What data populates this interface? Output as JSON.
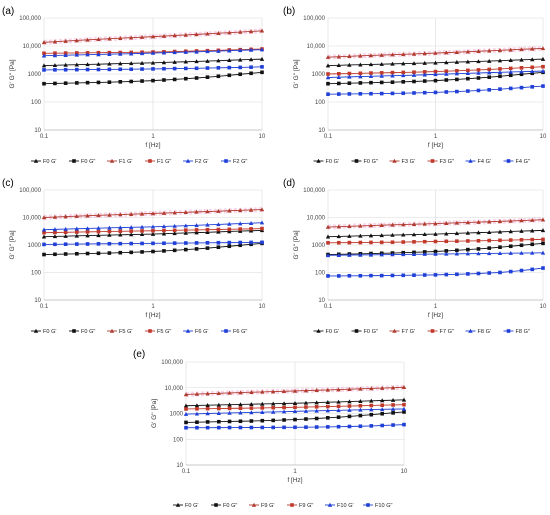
{
  "chart_data": [
    {
      "type": "line",
      "panel_label": "(a)",
      "xlabel": "f [Hz]",
      "ylabel": "G' G'' [Pa]",
      "xscale": "log",
      "yscale": "log",
      "xlim": [
        0.1,
        10
      ],
      "ylim": [
        10,
        100000
      ],
      "x_ticks": [
        "0.1",
        "1",
        "10"
      ],
      "y_ticks": [
        "10",
        "100",
        "1000",
        "10,000",
        "100,000"
      ],
      "grid": true,
      "legend_position": "bottom",
      "x": [
        0.1,
        0.126,
        0.158,
        0.2,
        0.251,
        0.316,
        0.398,
        0.501,
        0.631,
        0.794,
        1.0,
        1.26,
        1.58,
        2.0,
        2.51,
        3.16,
        3.98,
        5.01,
        6.31,
        7.94,
        10
      ],
      "series": [
        {
          "name": "F0 G'",
          "color": "#111111",
          "marker": "triangle",
          "values": [
            2000,
            2050,
            2100,
            2150,
            2200,
            2250,
            2300,
            2350,
            2400,
            2450,
            2500,
            2580,
            2660,
            2740,
            2820,
            2900,
            3000,
            3100,
            3200,
            3300,
            3400
          ]
        },
        {
          "name": "F0 G\"",
          "color": "#111111",
          "marker": "square",
          "values": [
            450,
            460,
            470,
            480,
            490,
            500,
            510,
            525,
            540,
            560,
            580,
            610,
            640,
            680,
            720,
            770,
            830,
            900,
            980,
            1060,
            1150
          ]
        },
        {
          "name": "F1 G'",
          "color": "#b03a2e",
          "marker": "triangle",
          "values": [
            13500,
            14200,
            15000,
            15800,
            16600,
            17400,
            18200,
            19000,
            19800,
            20700,
            21600,
            22600,
            23700,
            24800,
            26000,
            27300,
            28600,
            30000,
            31500,
            33000,
            35000
          ]
        },
        {
          "name": "F1 G\"",
          "color": "#c0392b",
          "marker": "square",
          "values": [
            5500,
            5550,
            5600,
            5650,
            5700,
            5750,
            5800,
            5850,
            5900,
            6000,
            6100,
            6200,
            6350,
            6500,
            6650,
            6800,
            7000,
            7200,
            7400,
            7600,
            7800
          ]
        },
        {
          "name": "F2 G'",
          "color": "#1f3fd6",
          "marker": "triangle",
          "values": [
            4500,
            4600,
            4700,
            4800,
            4900,
            5000,
            5100,
            5200,
            5300,
            5450,
            5600,
            5750,
            5900,
            6050,
            6200,
            6400,
            6600,
            6800,
            7000,
            7200,
            7400
          ]
        },
        {
          "name": "F2 G\"",
          "color": "#1f3fd6",
          "marker": "square",
          "values": [
            1400,
            1410,
            1420,
            1430,
            1440,
            1450,
            1460,
            1470,
            1480,
            1500,
            1520,
            1540,
            1560,
            1580,
            1600,
            1630,
            1660,
            1690,
            1720,
            1750,
            1800
          ]
        }
      ]
    },
    {
      "type": "line",
      "panel_label": "(b)",
      "xlabel": "f [Hz]",
      "ylabel": "G' G'' [Pa]",
      "xscale": "log",
      "yscale": "log",
      "xlim": [
        0.1,
        10
      ],
      "ylim": [
        10,
        100000
      ],
      "x_ticks": [
        "0.1",
        "1",
        "10"
      ],
      "y_ticks": [
        "10",
        "100",
        "1000",
        "10,000",
        "100,000"
      ],
      "grid": true,
      "legend_position": "bottom",
      "x": [
        0.1,
        0.126,
        0.158,
        0.2,
        0.251,
        0.316,
        0.398,
        0.501,
        0.631,
        0.794,
        1.0,
        1.26,
        1.58,
        2.0,
        2.51,
        3.16,
        3.98,
        5.01,
        6.31,
        7.94,
        10
      ],
      "series": [
        {
          "name": "F0 G'",
          "color": "#111111",
          "marker": "triangle",
          "values": [
            2000,
            2050,
            2100,
            2150,
            2200,
            2250,
            2300,
            2350,
            2400,
            2450,
            2500,
            2580,
            2660,
            2740,
            2820,
            2900,
            3000,
            3100,
            3200,
            3300,
            3400
          ]
        },
        {
          "name": "F0 G\"",
          "color": "#111111",
          "marker": "square",
          "values": [
            450,
            460,
            470,
            480,
            490,
            500,
            510,
            525,
            540,
            560,
            580,
            610,
            640,
            680,
            720,
            770,
            830,
            900,
            980,
            1060,
            1150
          ]
        },
        {
          "name": "F3 G'",
          "color": "#b03a2e",
          "marker": "triangle",
          "values": [
            4000,
            4150,
            4300,
            4450,
            4600,
            4750,
            4900,
            5050,
            5200,
            5400,
            5600,
            5800,
            6000,
            6250,
            6500,
            6750,
            7000,
            7300,
            7600,
            7900,
            8200
          ]
        },
        {
          "name": "F3 G\"",
          "color": "#c0392b",
          "marker": "square",
          "values": [
            1000,
            1020,
            1040,
            1060,
            1080,
            1100,
            1120,
            1140,
            1160,
            1190,
            1220,
            1260,
            1300,
            1350,
            1400,
            1460,
            1520,
            1590,
            1660,
            1740,
            1820
          ]
        },
        {
          "name": "F4 G'",
          "color": "#1f3fd6",
          "marker": "triangle",
          "values": [
            750,
            770,
            790,
            810,
            830,
            850,
            870,
            890,
            910,
            940,
            970,
            1000,
            1030,
            1060,
            1090,
            1120,
            1150,
            1180,
            1210,
            1240,
            1270
          ]
        },
        {
          "name": "F4 G\"",
          "color": "#1f3fd6",
          "marker": "square",
          "values": [
            190,
            192,
            194,
            196,
            198,
            200,
            203,
            206,
            210,
            215,
            220,
            228,
            236,
            246,
            258,
            272,
            288,
            306,
            326,
            348,
            370
          ]
        }
      ]
    },
    {
      "type": "line",
      "panel_label": "(c)",
      "xlabel": "f [Hz]",
      "ylabel": "G' G'' [Pa]",
      "xscale": "log",
      "yscale": "log",
      "xlim": [
        0.1,
        10
      ],
      "ylim": [
        10,
        100000
      ],
      "x_ticks": [
        "0.1",
        "1",
        "10"
      ],
      "y_ticks": [
        "10",
        "100",
        "1000",
        "10,000",
        "100,000"
      ],
      "grid": true,
      "legend_position": "bottom",
      "x": [
        0.1,
        0.126,
        0.158,
        0.2,
        0.251,
        0.316,
        0.398,
        0.501,
        0.631,
        0.794,
        1.0,
        1.26,
        1.58,
        2.0,
        2.51,
        3.16,
        3.98,
        5.01,
        6.31,
        7.94,
        10
      ],
      "series": [
        {
          "name": "F0 G'",
          "color": "#111111",
          "marker": "triangle",
          "values": [
            2000,
            2050,
            2100,
            2150,
            2200,
            2250,
            2300,
            2350,
            2400,
            2450,
            2500,
            2580,
            2660,
            2740,
            2820,
            2900,
            3000,
            3100,
            3200,
            3300,
            3400
          ]
        },
        {
          "name": "F0 G\"",
          "color": "#111111",
          "marker": "square",
          "values": [
            450,
            460,
            470,
            480,
            490,
            500,
            510,
            525,
            540,
            560,
            580,
            610,
            640,
            680,
            720,
            770,
            830,
            900,
            980,
            1060,
            1150
          ]
        },
        {
          "name": "F5 G'",
          "color": "#b03a2e",
          "marker": "triangle",
          "values": [
            10000,
            10400,
            10800,
            11200,
            11600,
            12000,
            12400,
            12800,
            13200,
            13600,
            14000,
            14500,
            15000,
            15500,
            16000,
            16500,
            17000,
            17600,
            18200,
            18800,
            19500
          ]
        },
        {
          "name": "F5 G\"",
          "color": "#c0392b",
          "marker": "square",
          "values": [
            2800,
            2850,
            2900,
            2950,
            3000,
            3050,
            3100,
            3150,
            3200,
            3250,
            3300,
            3360,
            3420,
            3480,
            3540,
            3600,
            3660,
            3720,
            3790,
            3860,
            3950
          ]
        },
        {
          "name": "F6 G'",
          "color": "#1f3fd6",
          "marker": "triangle",
          "values": [
            3600,
            3700,
            3800,
            3900,
            4000,
            4100,
            4200,
            4300,
            4400,
            4500,
            4600,
            4750,
            4900,
            5050,
            5200,
            5400,
            5600,
            5800,
            6000,
            6200,
            6500
          ]
        },
        {
          "name": "F6 G\"",
          "color": "#1f3fd6",
          "marker": "square",
          "values": [
            1050,
            1060,
            1070,
            1080,
            1090,
            1100,
            1110,
            1120,
            1130,
            1140,
            1150,
            1160,
            1170,
            1180,
            1190,
            1200,
            1210,
            1220,
            1230,
            1240,
            1250
          ]
        }
      ]
    },
    {
      "type": "line",
      "panel_label": "(d)",
      "xlabel": "f [Hz]",
      "ylabel": "G' G'' [Pa]",
      "xscale": "log",
      "yscale": "log",
      "xlim": [
        0.1,
        10
      ],
      "ylim": [
        10,
        100000
      ],
      "x_ticks": [
        "0.1",
        "1",
        "10"
      ],
      "y_ticks": [
        "10",
        "100",
        "1000",
        "10,000",
        "100,000"
      ],
      "grid": true,
      "legend_position": "bottom",
      "x": [
        0.1,
        0.126,
        0.158,
        0.2,
        0.251,
        0.316,
        0.398,
        0.501,
        0.631,
        0.794,
        1.0,
        1.26,
        1.58,
        2.0,
        2.51,
        3.16,
        3.98,
        5.01,
        6.31,
        7.94,
        10
      ],
      "series": [
        {
          "name": "F0 G'",
          "color": "#111111",
          "marker": "triangle",
          "values": [
            2000,
            2050,
            2100,
            2150,
            2200,
            2250,
            2300,
            2350,
            2400,
            2450,
            2500,
            2580,
            2660,
            2740,
            2820,
            2900,
            3000,
            3100,
            3200,
            3300,
            3400
          ]
        },
        {
          "name": "F0 G\"",
          "color": "#111111",
          "marker": "square",
          "values": [
            450,
            460,
            470,
            480,
            490,
            500,
            510,
            525,
            540,
            560,
            580,
            610,
            640,
            680,
            720,
            770,
            830,
            900,
            980,
            1060,
            1150
          ]
        },
        {
          "name": "F7 G'",
          "color": "#b03a2e",
          "marker": "triangle",
          "values": [
            4500,
            4650,
            4800,
            4950,
            5100,
            5250,
            5400,
            5550,
            5700,
            5850,
            6000,
            6200,
            6400,
            6600,
            6800,
            7000,
            7250,
            7500,
            7750,
            8000,
            8300
          ]
        },
        {
          "name": "F7 G\"",
          "color": "#c0392b",
          "marker": "square",
          "values": [
            1200,
            1210,
            1220,
            1230,
            1240,
            1250,
            1260,
            1280,
            1300,
            1320,
            1340,
            1360,
            1380,
            1400,
            1420,
            1450,
            1480,
            1510,
            1540,
            1570,
            1600
          ]
        },
        {
          "name": "F8 G'",
          "color": "#1f3fd6",
          "marker": "triangle",
          "values": [
            420,
            425,
            430,
            435,
            440,
            445,
            450,
            455,
            460,
            465,
            470,
            475,
            480,
            485,
            490,
            495,
            500,
            505,
            510,
            515,
            520
          ]
        },
        {
          "name": "F8 G\"",
          "color": "#1f3fd6",
          "marker": "square",
          "values": [
            75,
            75,
            76,
            76,
            77,
            77,
            78,
            79,
            80,
            81,
            82,
            84,
            86,
            89,
            92,
            96,
            100,
            108,
            118,
            130,
            145
          ]
        }
      ]
    },
    {
      "type": "line",
      "panel_label": "(e)",
      "xlabel": "f [Hz]",
      "ylabel": "G' G'' [Pa]",
      "xscale": "log",
      "yscale": "log",
      "xlim": [
        0.1,
        10
      ],
      "ylim": [
        10,
        100000
      ],
      "x_ticks": [
        "0.1",
        "1",
        "10"
      ],
      "y_ticks": [
        "10",
        "100",
        "1000",
        "10,000",
        "100,000"
      ],
      "grid": true,
      "legend_position": "bottom",
      "x": [
        0.1,
        0.126,
        0.158,
        0.2,
        0.251,
        0.316,
        0.398,
        0.501,
        0.631,
        0.794,
        1.0,
        1.26,
        1.58,
        2.0,
        2.51,
        3.16,
        3.98,
        5.01,
        6.31,
        7.94,
        10
      ],
      "series": [
        {
          "name": "F0 G'",
          "color": "#111111",
          "marker": "triangle",
          "values": [
            2000,
            2050,
            2100,
            2150,
            2200,
            2250,
            2300,
            2350,
            2400,
            2450,
            2500,
            2580,
            2660,
            2740,
            2820,
            2900,
            3000,
            3100,
            3200,
            3300,
            3400
          ]
        },
        {
          "name": "F0 G\"",
          "color": "#111111",
          "marker": "square",
          "values": [
            450,
            460,
            470,
            480,
            490,
            500,
            510,
            525,
            540,
            560,
            580,
            610,
            640,
            680,
            720,
            770,
            830,
            900,
            980,
            1060,
            1150
          ]
        },
        {
          "name": "F9 G'",
          "color": "#b03a2e",
          "marker": "triangle",
          "values": [
            5500,
            5700,
            5900,
            6100,
            6300,
            6500,
            6700,
            6900,
            7100,
            7300,
            7500,
            7750,
            8000,
            8250,
            8500,
            8800,
            9100,
            9400,
            9700,
            10000,
            10500
          ]
        },
        {
          "name": "F9 G\"",
          "color": "#c0392b",
          "marker": "square",
          "values": [
            1500,
            1520,
            1540,
            1560,
            1580,
            1600,
            1620,
            1650,
            1680,
            1710,
            1740,
            1780,
            1820,
            1860,
            1900,
            1950,
            2000,
            2050,
            2100,
            2150,
            2200
          ]
        },
        {
          "name": "F10 G'",
          "color": "#1f3fd6",
          "marker": "triangle",
          "values": [
            950,
            975,
            1000,
            1025,
            1050,
            1075,
            1100,
            1125,
            1150,
            1180,
            1210,
            1240,
            1270,
            1300,
            1330,
            1360,
            1390,
            1420,
            1450,
            1480,
            1500
          ]
        },
        {
          "name": "F10 G\"",
          "color": "#1f3fd6",
          "marker": "square",
          "values": [
            280,
            281,
            282,
            283,
            284,
            285,
            286,
            287,
            288,
            290,
            292,
            295,
            298,
            302,
            307,
            313,
            320,
            330,
            342,
            356,
            370
          ]
        }
      ]
    }
  ]
}
